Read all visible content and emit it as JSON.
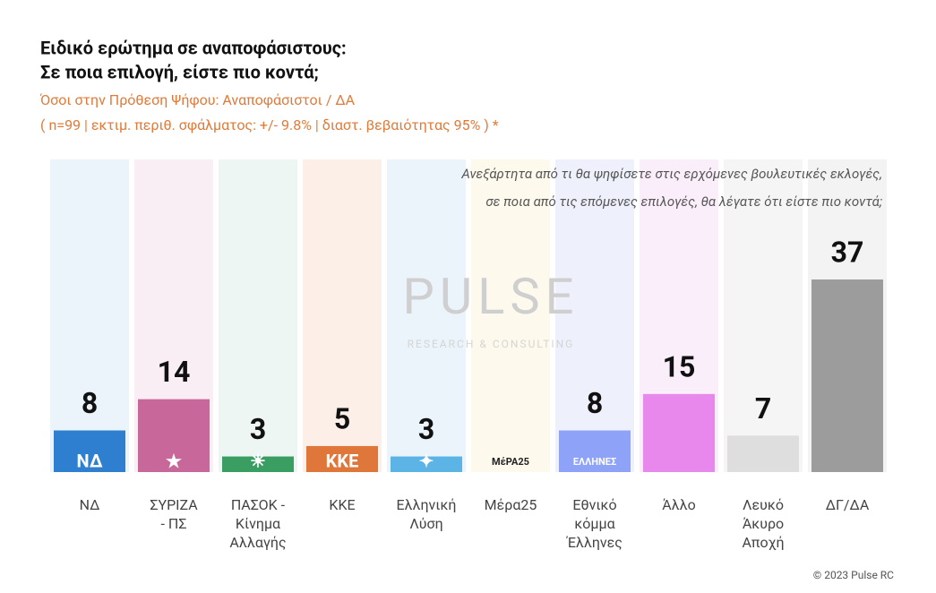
{
  "chart_data": {
    "type": "bar",
    "title": [
      "Ειδικό ερώτημα σε αναποφάσιστους:",
      "Σε ποια επιλογή, είστε πιο κοντά;"
    ],
    "subtitle": [
      "Όσοι στην Πρόθεση Ψήφου: Αναποφάσιστοι / ΔΑ",
      "( n=99  |  εκτιμ. περιθ. σφάλματος: +/- 9.8%  |  διαστ. βεβαιότητας 95% ) *"
    ],
    "question": [
      "Ανεξάρτητα από τι θα ψηφίσετε στις ερχόμενες βουλευτικές εκλογές,",
      "σε ποια από τις επόμενες επιλογές, θα λέγατε ότι είστε πιο κοντά;"
    ],
    "watermark": "PULSE",
    "watermark_sub": "RESEARCH & CONSULTING",
    "footer": "© 2023 Pulse RC",
    "categories": [
      "ΝΔ",
      "ΣΥΡΙΖΑ\n- ΠΣ",
      "ΠΑΣΟΚ -\nΚίνημα\nΑλλαγής",
      "ΚΚΕ",
      "Ελληνική\nΛύση",
      "Μέρα25",
      "Εθνικό\nκόμμα\nΈλληνες",
      "Άλλο",
      "Λευκό\nΆκυρο\nΑποχή",
      "ΔΓ/ΔΑ"
    ],
    "logos": [
      "ΝΔ",
      "★",
      "☀",
      "ΚΚΕ",
      "✦",
      "ΜέΡΑ25",
      "ΕΛΛΗΝΕΣ",
      null,
      null,
      null
    ],
    "values": [
      8,
      14,
      3,
      5,
      3,
      null,
      8,
      15,
      7,
      37
    ],
    "colors": [
      "#2f7fd0",
      "#c7679a",
      "#3a9d62",
      "#e0773a",
      "#5cb3e6",
      "#f2c94c",
      "#8ea2f7",
      "#e888ec",
      "#dedede",
      "#9c9c9c"
    ],
    "backgrounds": [
      "#eaf4fa",
      "#f8eef4",
      "#edf6f2",
      "#fbefe8",
      "#ebf4fb",
      "#fdf9ec",
      "#eef0fb",
      "#f9eefa",
      "#f5f5f5",
      "#f3f3f3"
    ]
  }
}
